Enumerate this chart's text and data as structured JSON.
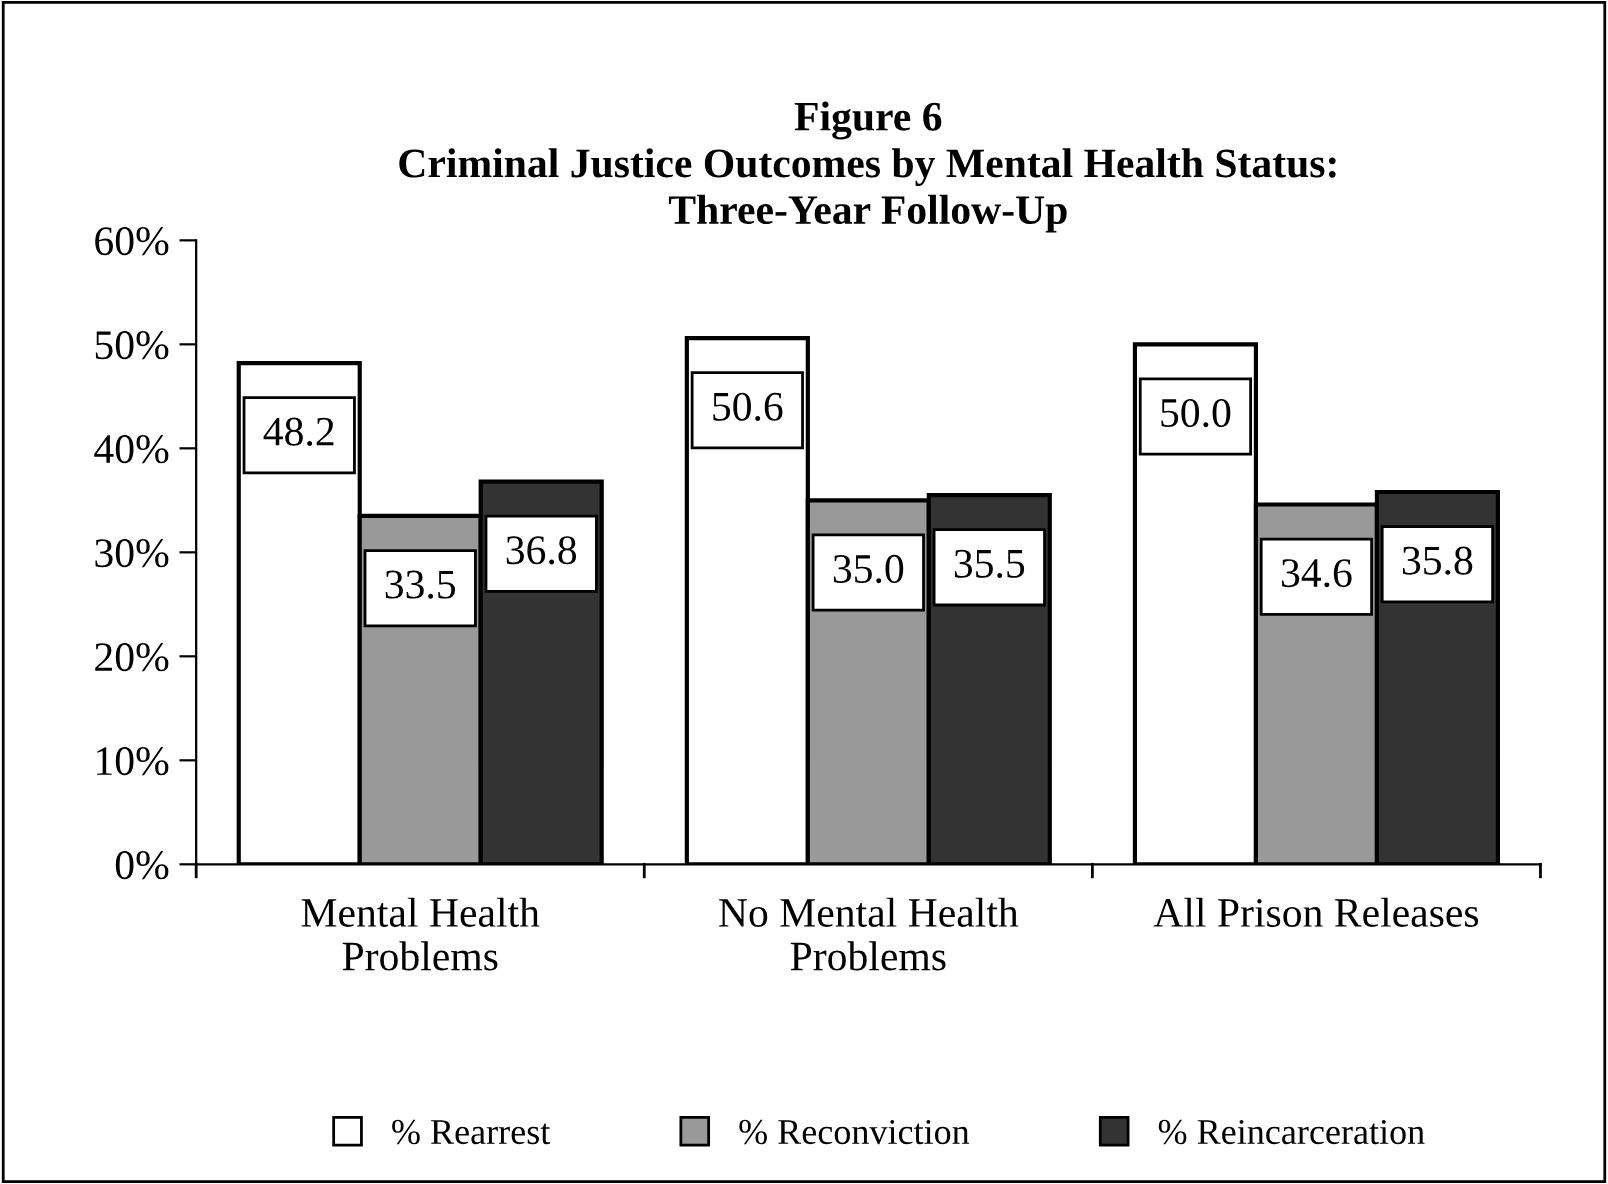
{
  "chart_data": {
    "type": "bar",
    "title": "Figure 6\nCriminal Justice Outcomes by Mental Health Status:\nThree-Year Follow-Up",
    "categories": [
      "Mental Health\nProblems",
      "No Mental Health\nProblems",
      "All Prison Releases"
    ],
    "series": [
      {
        "name": "% Rearrest",
        "color": "#ffffff",
        "values": [
          48.2,
          50.6,
          50.0
        ],
        "value_labels": [
          "48.2",
          "50.6",
          "50.0"
        ]
      },
      {
        "name": "% Reconviction",
        "color": "#999999",
        "values": [
          33.5,
          35.0,
          34.6
        ],
        "value_labels": [
          "33.5",
          "35.0",
          "34.6"
        ]
      },
      {
        "name": "% Reincarceration",
        "color": "#333333",
        "values": [
          36.8,
          35.5,
          35.8
        ],
        "value_labels": [
          "36.8",
          "35.5",
          "35.8"
        ]
      }
    ],
    "ylim": [
      0,
      60
    ],
    "yticks": [
      {
        "value": 0,
        "label": "0%"
      },
      {
        "value": 10,
        "label": "10%"
      },
      {
        "value": 20,
        "label": "20%"
      },
      {
        "value": 30,
        "label": "30%"
      },
      {
        "value": 40,
        "label": "40%"
      },
      {
        "value": 50,
        "label": "50%"
      },
      {
        "value": 60,
        "label": "60%"
      }
    ],
    "grid": false,
    "legend": "bottom",
    "marker": "square"
  }
}
